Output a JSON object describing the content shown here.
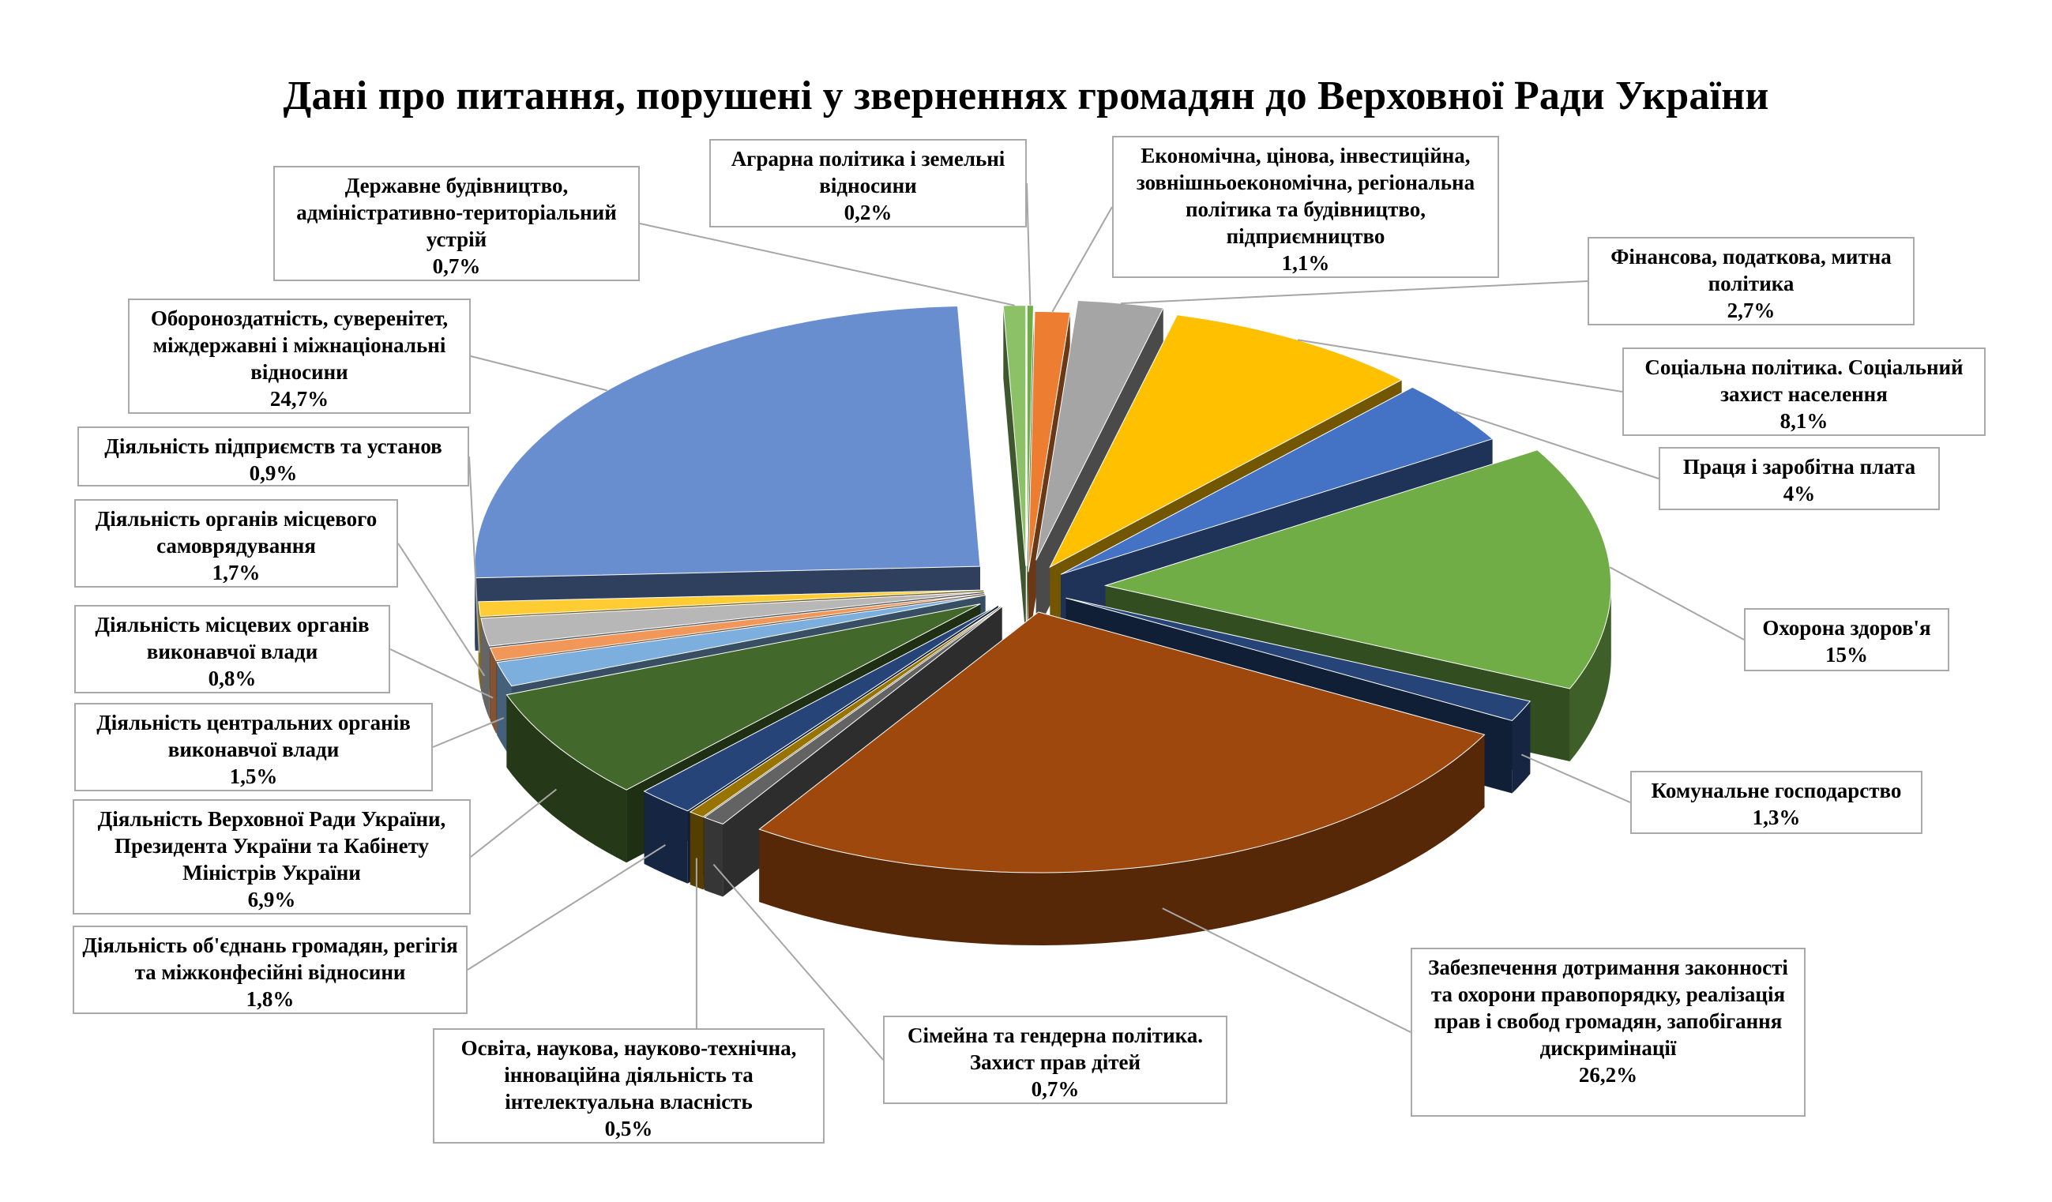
{
  "chart_data": {
    "type": "pie",
    "title": "Дані про питання, порушені у зверненнях громадян до Верховної Ради України",
    "slices": [
      {
        "label": "Аграрна політика і земельні відносини",
        "value": 0.2,
        "value_label": "0,2%",
        "color": "#70ad47"
      },
      {
        "label": "Економічна, цінова, інвестиційна, зовнішньоекономічна, регіональна політика та будівництво, підприємництво",
        "value": 1.1,
        "value_label": "1,1%",
        "color": "#ed7d31"
      },
      {
        "label": "Фінансова, податкова, митна політика",
        "value": 2.7,
        "value_label": "2,7%",
        "color": "#a5a5a5"
      },
      {
        "label": "Соціальна політика. Соціальний захист населення",
        "value": 8.1,
        "value_label": "8,1%",
        "color": "#ffc000"
      },
      {
        "label": "Праця і заробітна плата",
        "value": 4,
        "value_label": "4%",
        "color": "#4472c4"
      },
      {
        "label": "Охорона здоров'я",
        "value": 15,
        "value_label": "15%",
        "color": "#70ad47"
      },
      {
        "label": "Комунальне господарство",
        "value": 1.3,
        "value_label": "1,3%",
        "color": "#264478"
      },
      {
        "label": "Забезпечення дотримання законності та охорони правопорядку, реалізація прав і свобод громадян, запобігання дискримінації",
        "value": 26.2,
        "value_label": "26,2%",
        "color": "#9e480e"
      },
      {
        "label": "Сімейна та гендерна політика. Захист прав дітей",
        "value": 0.7,
        "value_label": "0,7%",
        "color": "#636363"
      },
      {
        "label": "Освіта, наукова, науково-технічна, інноваційна діяльність та інтелектуальна власність",
        "value": 0.5,
        "value_label": "0,5%",
        "color": "#997300"
      },
      {
        "label": "Діяльність об'єднань громадян, регігія та міжконфесійні відносини",
        "value": 1.8,
        "value_label": "1,8%",
        "color": "#264478"
      },
      {
        "label": "Діяльність Верховної Ради України, Президента України та Кабінету Міністрів України",
        "value": 6.9,
        "value_label": "6,9%",
        "color": "#43682b"
      },
      {
        "label": "Діяльність центральних органів виконавчої влади",
        "value": 1.5,
        "value_label": "1,5%",
        "color": "#7cafdd"
      },
      {
        "label": "Діяльність місцевих органів виконавчої влади",
        "value": 0.8,
        "value_label": "0,8%",
        "color": "#f1975a"
      },
      {
        "label": "Діяльність органів місцевого самоврядування",
        "value": 1.7,
        "value_label": "1,7%",
        "color": "#b7b7b7"
      },
      {
        "label": "Діяльність підприємств та установ",
        "value": 0.9,
        "value_label": "0,9%",
        "color": "#ffcd33"
      },
      {
        "label": "Обороноздатність, суверенітет, міждержавні і міжнаціональні відносини",
        "value": 24.7,
        "value_label": "24,7%",
        "color": "#698ed0"
      },
      {
        "label": "Державне будівництво, адміністративно-територіальний устрій",
        "value": 0.7,
        "value_label": "0,7%",
        "color": "#8cc168"
      }
    ],
    "start_angle_deg": 90,
    "direction": "clockwise",
    "exploded": true,
    "style": "3d",
    "legend": "none",
    "data_labels": "callouts with leader lines"
  }
}
